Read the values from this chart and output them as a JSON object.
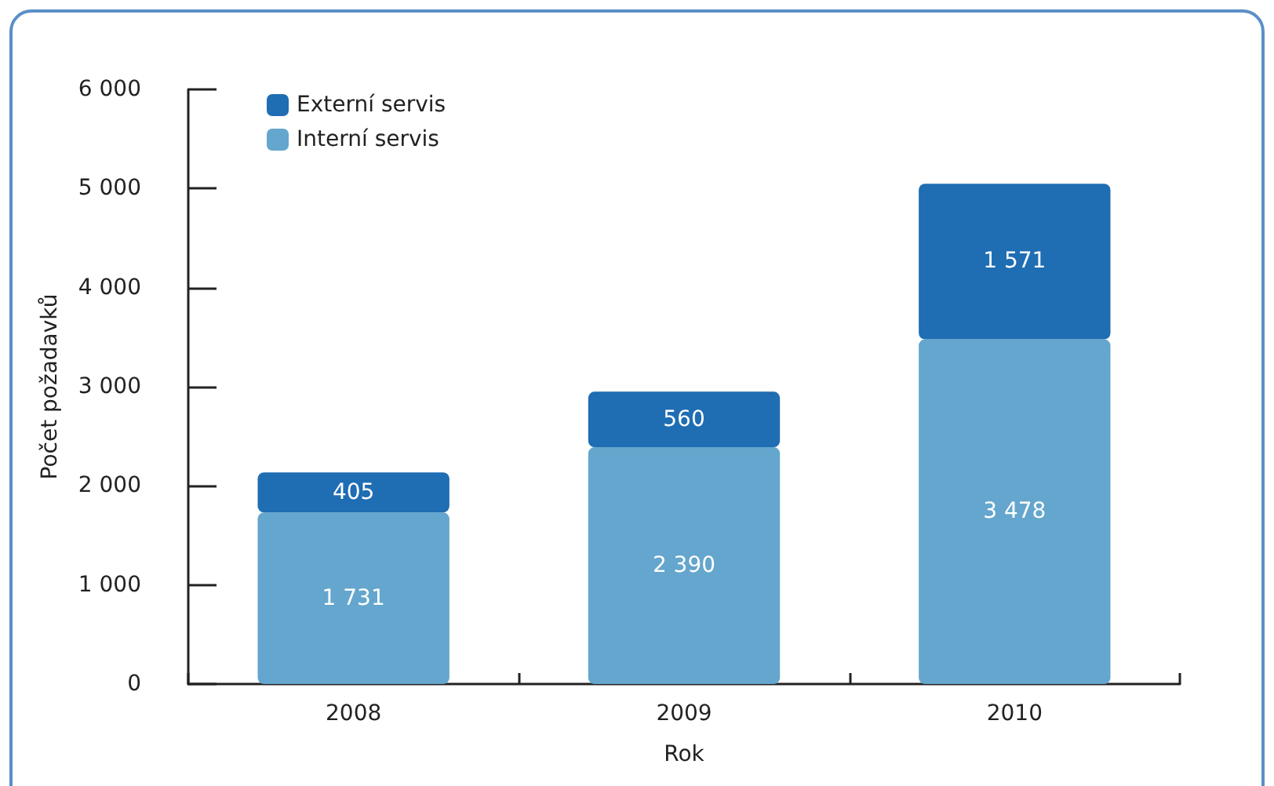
{
  "chart_data": {
    "type": "bar",
    "stacked": true,
    "categories": [
      "2008",
      "2009",
      "2010"
    ],
    "series": [
      {
        "name": "Interní servis",
        "color": "#64a6cd",
        "values": [
          1731,
          2390,
          3478
        ],
        "value_labels": [
          "1 731",
          "2 390",
          "3 478"
        ]
      },
      {
        "name": "Externí servis",
        "color": "#1f6db3",
        "values": [
          405,
          560,
          1571
        ],
        "value_labels": [
          "405",
          "560",
          "1 571"
        ]
      }
    ],
    "xlabel": "Rok",
    "ylabel": "Počet požadavků",
    "ylim": [
      0,
      6000
    ],
    "yticks": [
      0,
      {
        "value": 1000,
        "label": "1 000"
      },
      {
        "value": 2000,
        "label": "2 000"
      },
      {
        "value": 3000,
        "label": "3 000"
      },
      {
        "value": 4000,
        "label": "4 000"
      },
      {
        "value": 5000,
        "label": "5 000"
      },
      {
        "value": 6000,
        "label": "6 000"
      }
    ],
    "legend": "top left",
    "grid": false
  }
}
